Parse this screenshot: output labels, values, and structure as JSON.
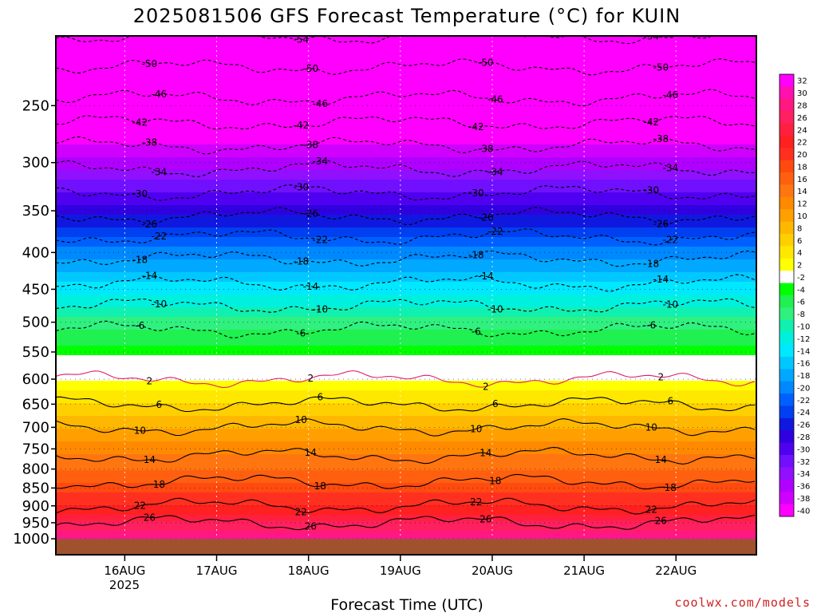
{
  "chart_data": {
    "type": "heatmap",
    "title": "2025081506 GFS Forecast Temperature (°C) for KUIN",
    "xlabel": "Forecast Time (UTC)",
    "ylabel": "",
    "y_axis": {
      "scale": "log-pressure",
      "inverted": true,
      "ticks": [
        250,
        300,
        350,
        400,
        450,
        500,
        550,
        600,
        650,
        700,
        750,
        800,
        850,
        900,
        950,
        1000
      ]
    },
    "x_axis": {
      "ticks": [
        "16AUG",
        "17AUG",
        "18AUG",
        "19AUG",
        "20AUG",
        "21AUG",
        "22AUG"
      ],
      "year_label": "2025",
      "xlim": [
        "2025-08-15T06Z",
        "2025-08-22T21Z"
      ]
    },
    "ylim": [
      1000,
      200
    ],
    "grid": true,
    "colorbar": {
      "placement": "right",
      "labels": [
        32,
        30,
        28,
        26,
        24,
        22,
        20,
        18,
        16,
        14,
        12,
        10,
        8,
        6,
        4,
        2,
        -2,
        -4,
        -6,
        -8,
        -10,
        -12,
        -14,
        -16,
        -18,
        -20,
        -22,
        -24,
        -26,
        -28,
        -30,
        -32,
        -34,
        -36,
        -38,
        -40
      ],
      "colors": [
        "#ff00ff",
        "#ff10b0",
        "#ff1880",
        "#ff2060",
        "#ff2040",
        "#ff2020",
        "#ff3020",
        "#ff4a10",
        "#ff6010",
        "#ff7610",
        "#ff8a00",
        "#ffa000",
        "#ffb800",
        "#ffd000",
        "#ffe800",
        "#ffff00",
        "#ffffff",
        "#00ff00",
        "#20f050",
        "#30f080",
        "#10f0b0",
        "#00f0e0",
        "#00e8ff",
        "#00c8ff",
        "#00a8ff",
        "#0088ff",
        "#0060ff",
        "#0040f0",
        "#1018e0",
        "#3000e0",
        "#5000f0",
        "#7010ff",
        "#9010ff",
        "#b000ff",
        "#d000ff",
        "#ff00ff"
      ]
    },
    "contour_labels": [
      -54,
      -50,
      -46,
      -42,
      -38,
      -34,
      -30,
      -26,
      -22,
      -18,
      -14,
      -10,
      -6,
      2,
      2,
      6,
      10,
      14,
      18,
      22,
      26
    ],
    "profile": {
      "levels": [
        1000,
        950,
        900,
        850,
        800,
        750,
        700,
        650,
        600,
        575,
        550,
        500,
        450,
        400,
        350,
        300,
        250,
        200
      ],
      "temperatures": [
        30,
        26,
        22,
        19,
        16,
        13,
        10,
        6,
        2,
        0,
        -3,
        -7,
        -13,
        -19,
        -27,
        -35,
        -45,
        -54
      ]
    },
    "ground_level": 1000
  },
  "credit": "coolwx.com/models"
}
